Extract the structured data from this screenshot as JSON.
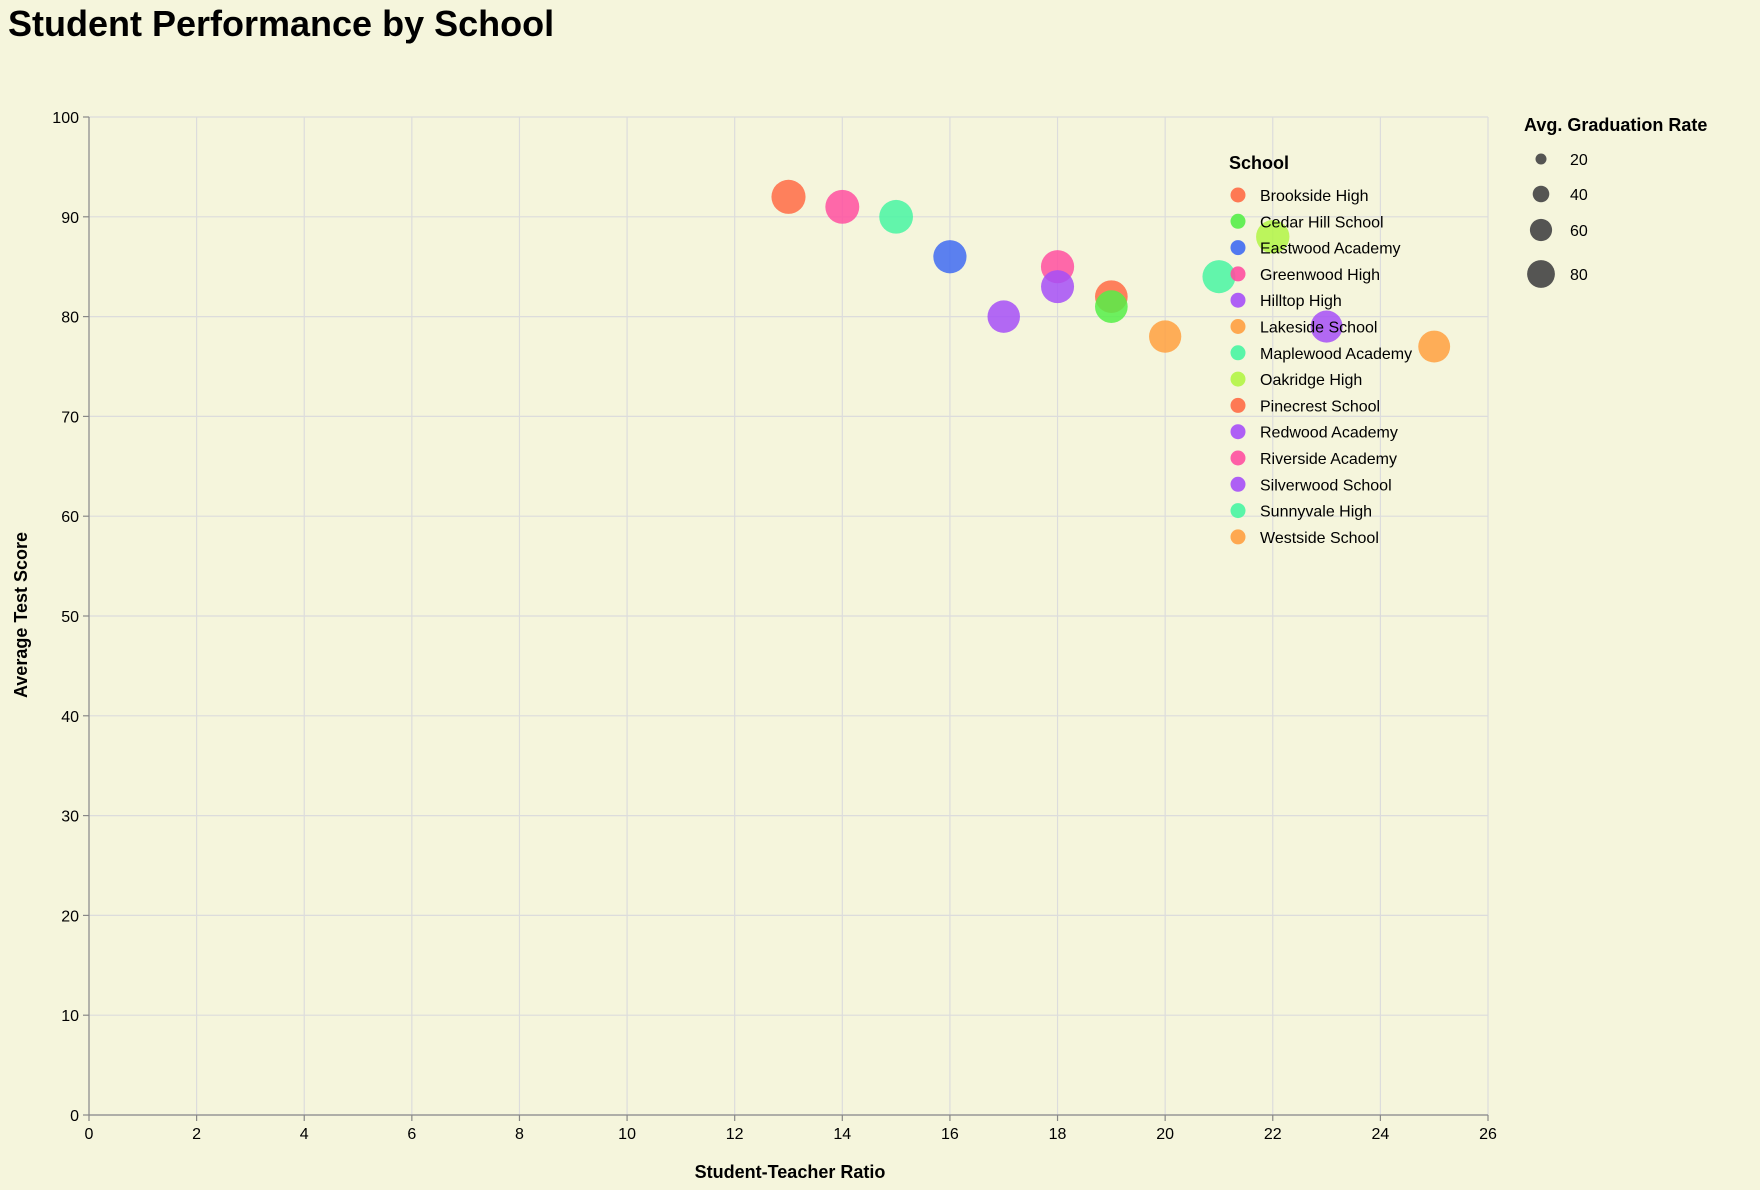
{
  "chart_data": {
    "type": "scatter",
    "title": "Student Performance by School",
    "xlabel": "Student-Teacher Ratio",
    "ylabel": "Average Test Score",
    "xlim": [
      0,
      26
    ],
    "ylim": [
      0,
      100
    ],
    "x_ticks": [
      0,
      2,
      4,
      6,
      8,
      10,
      12,
      14,
      16,
      18,
      20,
      22,
      24,
      26
    ],
    "y_ticks": [
      0,
      10,
      20,
      30,
      40,
      50,
      60,
      70,
      80,
      90,
      100
    ],
    "grid": true,
    "color_legend": {
      "title": "School",
      "placement": "top-right",
      "entries": [
        {
          "name": "Brookside High",
          "color": "#ff6b45"
        },
        {
          "name": "Cedar Hill School",
          "color": "#55ee48"
        },
        {
          "name": "Eastwood Academy",
          "color": "#3f6bf2"
        },
        {
          "name": "Greenwood High",
          "color": "#ff4fa0"
        },
        {
          "name": "Hilltop High",
          "color": "#a64ff7"
        },
        {
          "name": "Lakeside School",
          "color": "#ffa040"
        },
        {
          "name": "Maplewood Academy",
          "color": "#48f5a2"
        },
        {
          "name": "Oakridge High",
          "color": "#b2f545"
        },
        {
          "name": "Pinecrest School",
          "color": "#ff6b45"
        },
        {
          "name": "Redwood Academy",
          "color": "#a64ff7"
        },
        {
          "name": "Riverside Academy",
          "color": "#ff4fa0"
        },
        {
          "name": "Silverwood School",
          "color": "#a64ff7"
        },
        {
          "name": "Sunnyvale High",
          "color": "#48f5a2"
        },
        {
          "name": "Westside School",
          "color": "#ffa040"
        }
      ]
    },
    "size_legend": {
      "title": "Avg. Graduation Rate",
      "placement": "right",
      "entries": [
        {
          "label": "20",
          "value": 20
        },
        {
          "label": "40",
          "value": 40
        },
        {
          "label": "60",
          "value": 60
        },
        {
          "label": "80",
          "value": 80
        }
      ]
    },
    "points": [
      {
        "x": 13,
        "y": 92,
        "size": 95,
        "color": "#ff6b45"
      },
      {
        "x": 14,
        "y": 91,
        "size": 94,
        "color": "#ff4fa0"
      },
      {
        "x": 15,
        "y": 90,
        "size": 93,
        "color": "#48f5a2"
      },
      {
        "x": 16,
        "y": 86,
        "size": 90,
        "color": "#3f6bf2"
      },
      {
        "x": 17,
        "y": 80,
        "size": 86,
        "color": "#a64ff7"
      },
      {
        "x": 18,
        "y": 85,
        "size": 90,
        "color": "#ff4fa0"
      },
      {
        "x": 18,
        "y": 83,
        "size": 89,
        "color": "#a64ff7"
      },
      {
        "x": 19,
        "y": 82,
        "size": 87,
        "color": "#ff6b45"
      },
      {
        "x": 19,
        "y": 81,
        "size": 87,
        "color": "#55ee48"
      },
      {
        "x": 20,
        "y": 78,
        "size": 85,
        "color": "#ffa040"
      },
      {
        "x": 21,
        "y": 84,
        "size": 89,
        "color": "#48f5a2"
      },
      {
        "x": 22,
        "y": 88,
        "size": 91,
        "color": "#b2f545"
      },
      {
        "x": 23,
        "y": 79,
        "size": 84,
        "color": "#a64ff7"
      },
      {
        "x": 25,
        "y": 77,
        "size": 83,
        "color": "#ffa040"
      }
    ]
  }
}
